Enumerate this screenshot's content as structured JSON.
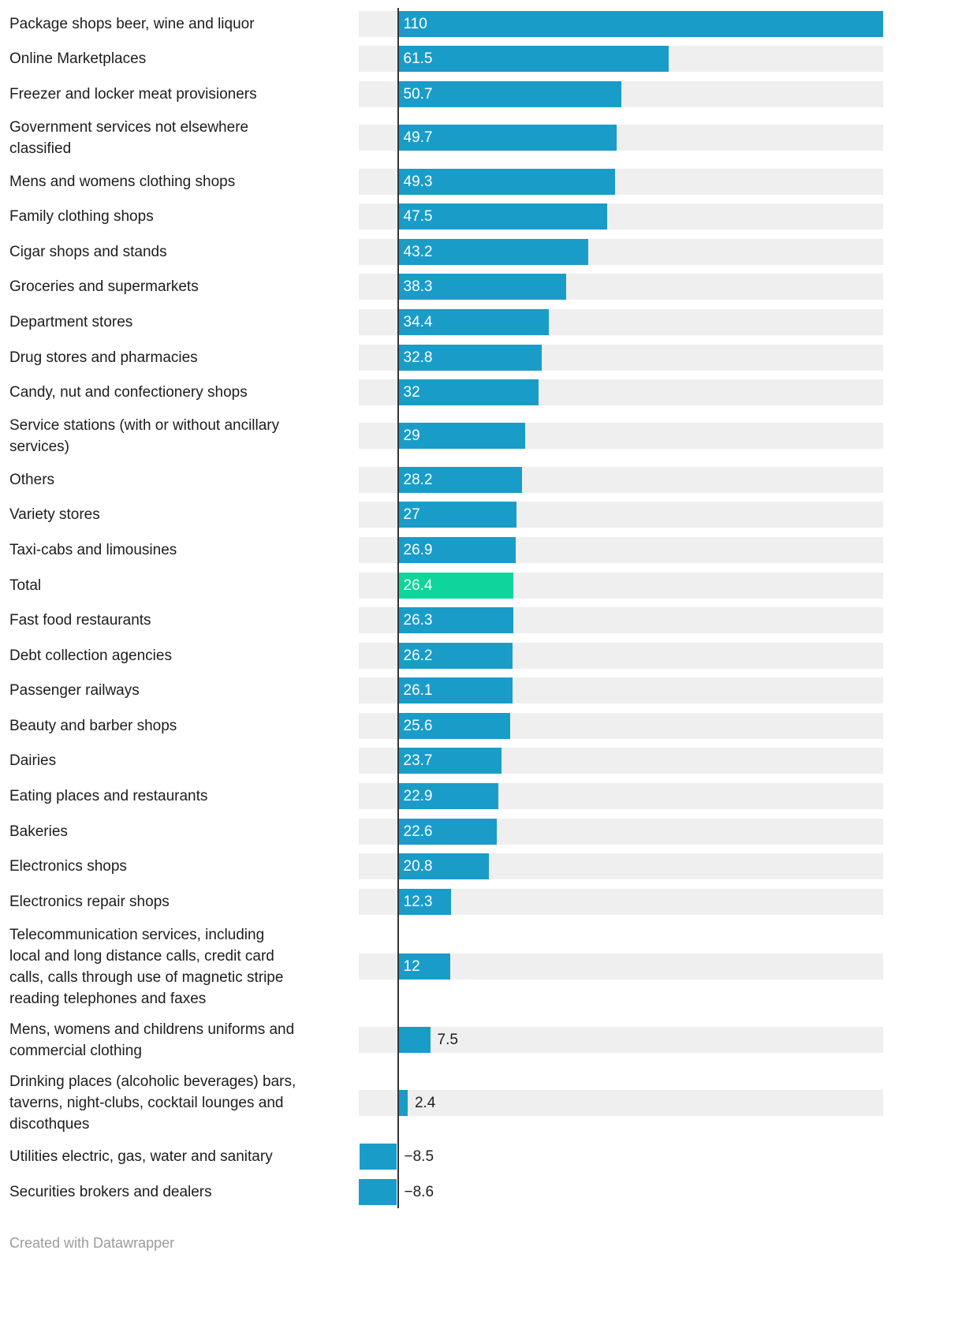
{
  "chart_data": {
    "type": "bar",
    "orientation": "horizontal",
    "title": "",
    "xlabel": "",
    "ylabel": "",
    "xlim": [
      -8.6,
      110
    ],
    "grid": false,
    "legend": false,
    "highlight_category": "Total",
    "highlight_index": 15,
    "categories": [
      "Package shops beer, wine and liquor",
      "Online Marketplaces",
      "Freezer and locker meat provisioners",
      "Government services not elsewhere\nclassified",
      "Mens and womens clothing shops",
      "Family clothing shops",
      "Cigar shops and stands",
      "Groceries and supermarkets",
      "Department stores",
      "Drug stores and pharmacies",
      "Candy, nut and confectionery shops",
      "Service stations (with or without ancillary\nservices)",
      "Others",
      "Variety stores",
      "Taxi-cabs and limousines",
      "Total",
      "Fast food restaurants",
      "Debt collection agencies",
      "Passenger railways",
      "Beauty and barber shops",
      "Dairies",
      "Eating places and restaurants",
      "Bakeries",
      "Electronics shops",
      "Electronics repair shops",
      "Telecommunication services, including\nlocal and long distance calls, credit card\ncalls, calls through use of magnetic stripe\nreading telephones and faxes",
      "Mens, womens and childrens uniforms and\ncommercial clothing",
      "Drinking places (alcoholic beverages) bars,\ntaverns, night-clubs, cocktail lounges and\ndiscothques",
      "Utilities electric, gas, water and sanitary",
      "Securities brokers and dealers"
    ],
    "values": [
      110,
      61.5,
      50.7,
      49.7,
      49.3,
      47.5,
      43.2,
      38.3,
      34.4,
      32.8,
      32,
      29,
      28.2,
      27,
      26.9,
      26.4,
      26.3,
      26.2,
      26.1,
      25.6,
      23.7,
      22.9,
      22.6,
      20.8,
      12.3,
      12,
      7.5,
      2.4,
      -8.5,
      -8.6
    ],
    "value_labels": [
      "110",
      "61.5",
      "50.7",
      "49.7",
      "49.3",
      "47.5",
      "43.2",
      "38.3",
      "34.4",
      "32.8",
      "32",
      "29",
      "28.2",
      "27",
      "26.9",
      "26.4",
      "26.3",
      "26.2",
      "26.1",
      "25.6",
      "23.7",
      "22.9",
      "22.6",
      "20.8",
      "12.3",
      "12",
      "7.5",
      "2.4",
      "−8.5",
      "−8.6"
    ]
  },
  "colors": {
    "bar": "#1a9cc9",
    "highlight": "#0fd59b",
    "track": "#efefef",
    "axis_line": "#333333",
    "label_text": "#1d1d1d",
    "value_inside": "#ffffff",
    "value_outside": "#1d1d1d",
    "credit_text": "#9b9b9b"
  },
  "footer": {
    "credit": "Created with Datawrapper"
  }
}
